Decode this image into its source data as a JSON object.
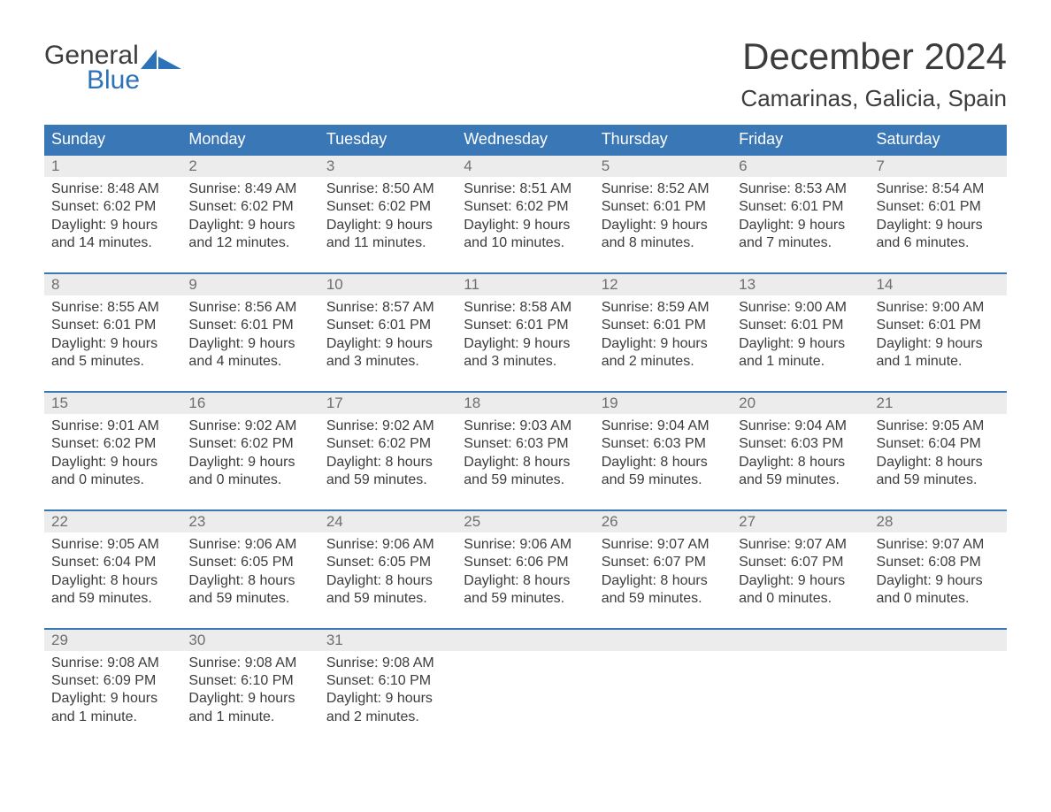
{
  "colors": {
    "header_bg": "#3a77b7",
    "header_text": "#ffffff",
    "week_border": "#3a77b7",
    "daynum_bg": "#ececec",
    "daynum_text": "#6f6f6f",
    "body_text": "#3c3c3c",
    "logo_blue": "#2b72b8",
    "background": "#ffffff"
  },
  "logo": {
    "word1": "General",
    "word2": "Blue"
  },
  "header": {
    "month_title": "December 2024",
    "location": "Camarinas, Galicia, Spain"
  },
  "weekdays": [
    "Sunday",
    "Monday",
    "Tuesday",
    "Wednesday",
    "Thursday",
    "Friday",
    "Saturday"
  ],
  "weeks": [
    [
      {
        "n": "1",
        "sr": "Sunrise: 8:48 AM",
        "ss": "Sunset: 6:02 PM",
        "d1": "Daylight: 9 hours",
        "d2": "and 14 minutes."
      },
      {
        "n": "2",
        "sr": "Sunrise: 8:49 AM",
        "ss": "Sunset: 6:02 PM",
        "d1": "Daylight: 9 hours",
        "d2": "and 12 minutes."
      },
      {
        "n": "3",
        "sr": "Sunrise: 8:50 AM",
        "ss": "Sunset: 6:02 PM",
        "d1": "Daylight: 9 hours",
        "d2": "and 11 minutes."
      },
      {
        "n": "4",
        "sr": "Sunrise: 8:51 AM",
        "ss": "Sunset: 6:02 PM",
        "d1": "Daylight: 9 hours",
        "d2": "and 10 minutes."
      },
      {
        "n": "5",
        "sr": "Sunrise: 8:52 AM",
        "ss": "Sunset: 6:01 PM",
        "d1": "Daylight: 9 hours",
        "d2": "and 8 minutes."
      },
      {
        "n": "6",
        "sr": "Sunrise: 8:53 AM",
        "ss": "Sunset: 6:01 PM",
        "d1": "Daylight: 9 hours",
        "d2": "and 7 minutes."
      },
      {
        "n": "7",
        "sr": "Sunrise: 8:54 AM",
        "ss": "Sunset: 6:01 PM",
        "d1": "Daylight: 9 hours",
        "d2": "and 6 minutes."
      }
    ],
    [
      {
        "n": "8",
        "sr": "Sunrise: 8:55 AM",
        "ss": "Sunset: 6:01 PM",
        "d1": "Daylight: 9 hours",
        "d2": "and 5 minutes."
      },
      {
        "n": "9",
        "sr": "Sunrise: 8:56 AM",
        "ss": "Sunset: 6:01 PM",
        "d1": "Daylight: 9 hours",
        "d2": "and 4 minutes."
      },
      {
        "n": "10",
        "sr": "Sunrise: 8:57 AM",
        "ss": "Sunset: 6:01 PM",
        "d1": "Daylight: 9 hours",
        "d2": "and 3 minutes."
      },
      {
        "n": "11",
        "sr": "Sunrise: 8:58 AM",
        "ss": "Sunset: 6:01 PM",
        "d1": "Daylight: 9 hours",
        "d2": "and 3 minutes."
      },
      {
        "n": "12",
        "sr": "Sunrise: 8:59 AM",
        "ss": "Sunset: 6:01 PM",
        "d1": "Daylight: 9 hours",
        "d2": "and 2 minutes."
      },
      {
        "n": "13",
        "sr": "Sunrise: 9:00 AM",
        "ss": "Sunset: 6:01 PM",
        "d1": "Daylight: 9 hours",
        "d2": "and 1 minute."
      },
      {
        "n": "14",
        "sr": "Sunrise: 9:00 AM",
        "ss": "Sunset: 6:01 PM",
        "d1": "Daylight: 9 hours",
        "d2": "and 1 minute."
      }
    ],
    [
      {
        "n": "15",
        "sr": "Sunrise: 9:01 AM",
        "ss": "Sunset: 6:02 PM",
        "d1": "Daylight: 9 hours",
        "d2": "and 0 minutes."
      },
      {
        "n": "16",
        "sr": "Sunrise: 9:02 AM",
        "ss": "Sunset: 6:02 PM",
        "d1": "Daylight: 9 hours",
        "d2": "and 0 minutes."
      },
      {
        "n": "17",
        "sr": "Sunrise: 9:02 AM",
        "ss": "Sunset: 6:02 PM",
        "d1": "Daylight: 8 hours",
        "d2": "and 59 minutes."
      },
      {
        "n": "18",
        "sr": "Sunrise: 9:03 AM",
        "ss": "Sunset: 6:03 PM",
        "d1": "Daylight: 8 hours",
        "d2": "and 59 minutes."
      },
      {
        "n": "19",
        "sr": "Sunrise: 9:04 AM",
        "ss": "Sunset: 6:03 PM",
        "d1": "Daylight: 8 hours",
        "d2": "and 59 minutes."
      },
      {
        "n": "20",
        "sr": "Sunrise: 9:04 AM",
        "ss": "Sunset: 6:03 PM",
        "d1": "Daylight: 8 hours",
        "d2": "and 59 minutes."
      },
      {
        "n": "21",
        "sr": "Sunrise: 9:05 AM",
        "ss": "Sunset: 6:04 PM",
        "d1": "Daylight: 8 hours",
        "d2": "and 59 minutes."
      }
    ],
    [
      {
        "n": "22",
        "sr": "Sunrise: 9:05 AM",
        "ss": "Sunset: 6:04 PM",
        "d1": "Daylight: 8 hours",
        "d2": "and 59 minutes."
      },
      {
        "n": "23",
        "sr": "Sunrise: 9:06 AM",
        "ss": "Sunset: 6:05 PM",
        "d1": "Daylight: 8 hours",
        "d2": "and 59 minutes."
      },
      {
        "n": "24",
        "sr": "Sunrise: 9:06 AM",
        "ss": "Sunset: 6:05 PM",
        "d1": "Daylight: 8 hours",
        "d2": "and 59 minutes."
      },
      {
        "n": "25",
        "sr": "Sunrise: 9:06 AM",
        "ss": "Sunset: 6:06 PM",
        "d1": "Daylight: 8 hours",
        "d2": "and 59 minutes."
      },
      {
        "n": "26",
        "sr": "Sunrise: 9:07 AM",
        "ss": "Sunset: 6:07 PM",
        "d1": "Daylight: 8 hours",
        "d2": "and 59 minutes."
      },
      {
        "n": "27",
        "sr": "Sunrise: 9:07 AM",
        "ss": "Sunset: 6:07 PM",
        "d1": "Daylight: 9 hours",
        "d2": "and 0 minutes."
      },
      {
        "n": "28",
        "sr": "Sunrise: 9:07 AM",
        "ss": "Sunset: 6:08 PM",
        "d1": "Daylight: 9 hours",
        "d2": "and 0 minutes."
      }
    ],
    [
      {
        "n": "29",
        "sr": "Sunrise: 9:08 AM",
        "ss": "Sunset: 6:09 PM",
        "d1": "Daylight: 9 hours",
        "d2": "and 1 minute."
      },
      {
        "n": "30",
        "sr": "Sunrise: 9:08 AM",
        "ss": "Sunset: 6:10 PM",
        "d1": "Daylight: 9 hours",
        "d2": "and 1 minute."
      },
      {
        "n": "31",
        "sr": "Sunrise: 9:08 AM",
        "ss": "Sunset: 6:10 PM",
        "d1": "Daylight: 9 hours",
        "d2": "and 2 minutes."
      },
      {
        "n": "",
        "sr": "",
        "ss": "",
        "d1": "",
        "d2": ""
      },
      {
        "n": "",
        "sr": "",
        "ss": "",
        "d1": "",
        "d2": ""
      },
      {
        "n": "",
        "sr": "",
        "ss": "",
        "d1": "",
        "d2": ""
      },
      {
        "n": "",
        "sr": "",
        "ss": "",
        "d1": "",
        "d2": ""
      }
    ]
  ]
}
